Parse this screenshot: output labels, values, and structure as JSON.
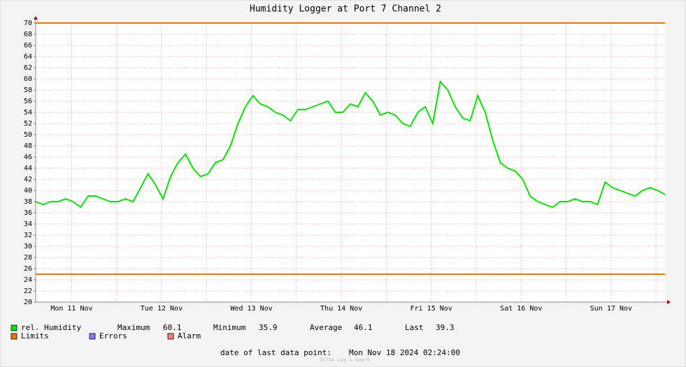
{
  "chart_data": {
    "type": "line",
    "title": "Humidity Logger at Port 7 Channel 2",
    "series": [
      {
        "name": "rel. Humidity",
        "color": "#00e800",
        "values": [
          38,
          37.5,
          38,
          38,
          38.5,
          38,
          37,
          39,
          39,
          38.5,
          38,
          38,
          38.5,
          38,
          40.5,
          43,
          41,
          38.5,
          42.5,
          45,
          46.5,
          44,
          42.5,
          43,
          45,
          45.5,
          48,
          52,
          55,
          57,
          55.5,
          55,
          54,
          53.5,
          52.5,
          54.5,
          54.5,
          55,
          55.5,
          56,
          54,
          54,
          55.5,
          55,
          57.5,
          56,
          53.5,
          54,
          53.5,
          52,
          51.5,
          54,
          55,
          52,
          59.5,
          58,
          55,
          53,
          52.5,
          57,
          54,
          49,
          45,
          44,
          43.5,
          42,
          39,
          38,
          37.5,
          37,
          38,
          38,
          38.5,
          38,
          38,
          37.5,
          41.5,
          40.5,
          40,
          39.5,
          39,
          40,
          40.5,
          40,
          39.3
        ]
      }
    ],
    "limits": {
      "name": "Limits",
      "color": "#ee7700",
      "values": [
        25,
        70
      ]
    },
    "extra_legend": [
      {
        "name": "Errors",
        "color": "#7f7fff"
      },
      {
        "name": "Alarm",
        "color": "#ff7f7f"
      }
    ],
    "x_labels": [
      "Mon 11 Nov",
      "Tue 12 Nov",
      "Wed 13 Nov",
      "Thu 14 Nov",
      "Fri 15 Nov",
      "Sat 16 Nov",
      "Sun 17 Nov"
    ],
    "ylim": [
      20,
      70
    ],
    "yticks": [
      20,
      22,
      24,
      26,
      28,
      30,
      32,
      34,
      36,
      38,
      40,
      42,
      44,
      46,
      48,
      50,
      52,
      54,
      56,
      58,
      60,
      62,
      64,
      66,
      68,
      70
    ],
    "grid": true,
    "stats": [
      {
        "label": "Maximum",
        "value": 60.1
      },
      {
        "label": "Minimum",
        "value": 35.9
      },
      {
        "label": "Average",
        "value": 46.1
      },
      {
        "label": "Last",
        "value": 39.3
      }
    ],
    "footer": {
      "label": "date of last data point:",
      "value": "Mon Nov 18 2024 02:24:00"
    },
    "watermark": "OCTA4 Log & Guard"
  }
}
